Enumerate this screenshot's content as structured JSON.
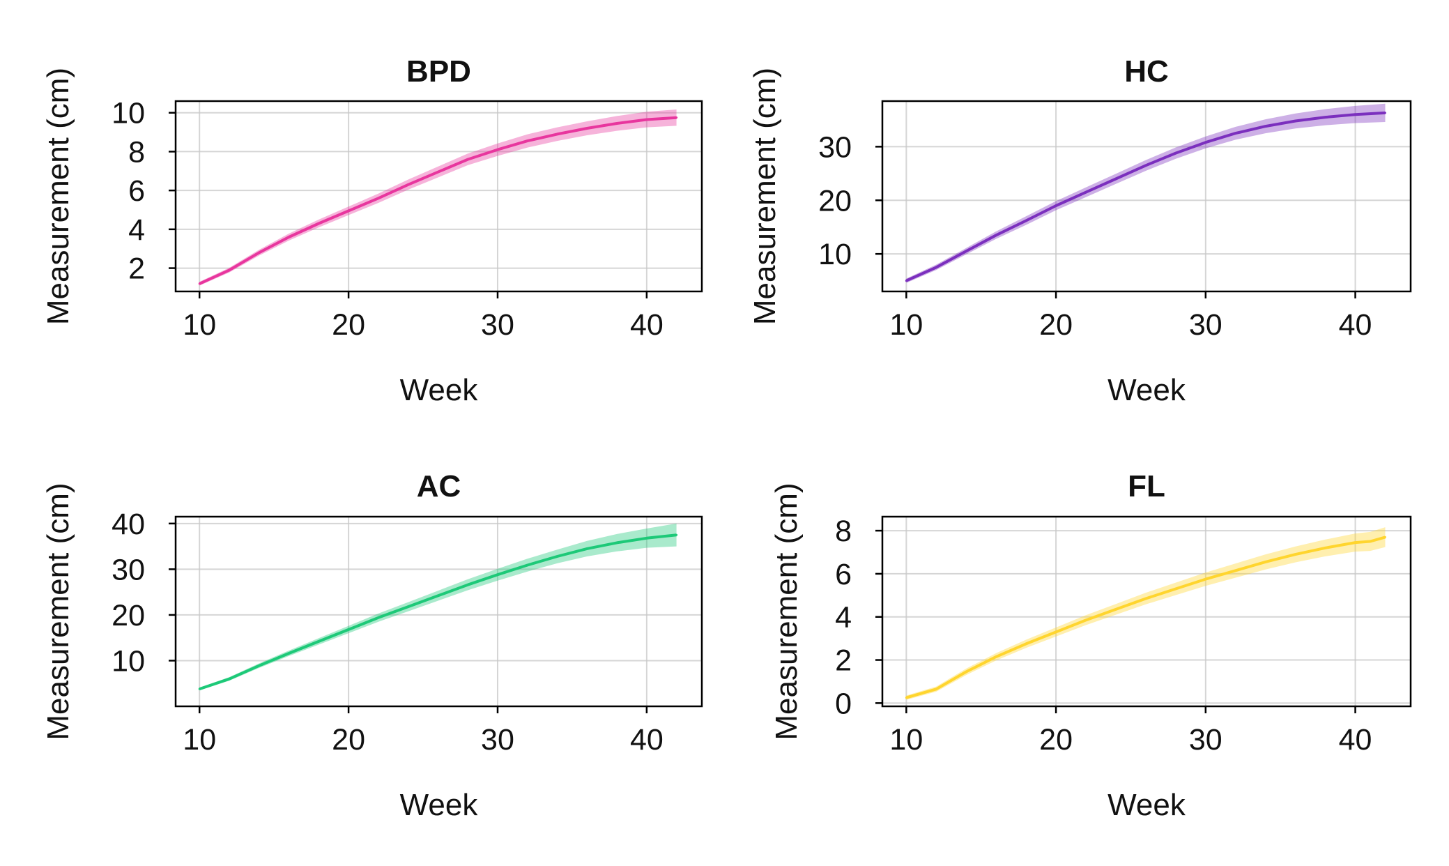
{
  "chart_data": [
    {
      "type": "line",
      "title": "BPD",
      "xlabel": "Week",
      "ylabel": "Measurement (cm)",
      "color": "#e8369e",
      "x": [
        10,
        12,
        14,
        16,
        18,
        20,
        22,
        24,
        26,
        28,
        30,
        32,
        34,
        36,
        38,
        40,
        42
      ],
      "y": [
        1.2,
        1.9,
        2.8,
        3.6,
        4.3,
        4.95,
        5.6,
        6.3,
        6.95,
        7.6,
        8.1,
        8.55,
        8.9,
        9.2,
        9.45,
        9.65,
        9.75
      ],
      "band": [
        0.1,
        0.12,
        0.15,
        0.18,
        0.2,
        0.22,
        0.24,
        0.26,
        0.28,
        0.3,
        0.32,
        0.34,
        0.35,
        0.36,
        0.38,
        0.4,
        0.42
      ],
      "xlim": [
        8.4,
        43.7
      ],
      "ylim": [
        0.8,
        10.6
      ],
      "xticks": [
        10,
        20,
        30,
        40
      ],
      "yticks": [
        2,
        4,
        6,
        8,
        10
      ],
      "grid": true
    },
    {
      "type": "line",
      "title": "HC",
      "xlabel": "Week",
      "ylabel": "Measurement (cm)",
      "color": "#7b2fbe",
      "x": [
        10,
        12,
        14,
        16,
        18,
        20,
        22,
        24,
        26,
        28,
        30,
        32,
        34,
        36,
        38,
        40,
        42
      ],
      "y": [
        5.0,
        7.5,
        10.5,
        13.5,
        16.2,
        19.0,
        21.5,
        24.0,
        26.5,
        28.8,
        30.8,
        32.5,
        33.8,
        34.8,
        35.5,
        36.0,
        36.3
      ],
      "band": [
        0.4,
        0.5,
        0.6,
        0.7,
        0.8,
        0.85,
        0.9,
        0.95,
        1.0,
        1.05,
        1.1,
        1.2,
        1.3,
        1.4,
        1.5,
        1.6,
        1.7
      ],
      "xlim": [
        8.4,
        43.7
      ],
      "ylim": [
        3.0,
        38.5
      ],
      "xticks": [
        10,
        20,
        30,
        40
      ],
      "yticks": [
        10,
        20,
        30
      ],
      "grid": true
    },
    {
      "type": "line",
      "title": "AC",
      "xlabel": "Week",
      "ylabel": "Measurement (cm)",
      "color": "#1dc978",
      "x": [
        10,
        12,
        14,
        16,
        18,
        20,
        22,
        24,
        26,
        28,
        30,
        32,
        34,
        36,
        38,
        40,
        42
      ],
      "y": [
        3.8,
        6.0,
        8.9,
        11.6,
        14.2,
        16.8,
        19.4,
        21.8,
        24.2,
        26.6,
        28.8,
        30.9,
        32.8,
        34.5,
        35.8,
        36.8,
        37.5
      ],
      "band": [
        0.3,
        0.4,
        0.5,
        0.6,
        0.7,
        0.8,
        0.9,
        1.0,
        1.1,
        1.2,
        1.3,
        1.4,
        1.5,
        1.7,
        1.9,
        2.1,
        2.5
      ],
      "xlim": [
        8.4,
        43.7
      ],
      "ylim": [
        0.0,
        41.5
      ],
      "xticks": [
        10,
        20,
        30,
        40
      ],
      "yticks": [
        10,
        20,
        30,
        40
      ],
      "grid": true
    },
    {
      "type": "line",
      "title": "FL",
      "xlabel": "Week",
      "ylabel": "Measurement (cm)",
      "color": "#ffd52e",
      "x": [
        10,
        12,
        14,
        16,
        18,
        20,
        22,
        24,
        26,
        28,
        30,
        32,
        34,
        36,
        38,
        40,
        41,
        42
      ],
      "y": [
        0.25,
        0.65,
        1.45,
        2.15,
        2.75,
        3.3,
        3.85,
        4.35,
        4.85,
        5.3,
        5.75,
        6.15,
        6.55,
        6.9,
        7.2,
        7.45,
        7.5,
        7.7
      ],
      "band": [
        0.1,
        0.12,
        0.15,
        0.17,
        0.19,
        0.21,
        0.23,
        0.25,
        0.27,
        0.29,
        0.31,
        0.33,
        0.35,
        0.37,
        0.39,
        0.42,
        0.44,
        0.46
      ],
      "xlim": [
        8.4,
        43.7
      ],
      "ylim": [
        -0.15,
        8.65
      ],
      "xticks": [
        10,
        20,
        30,
        40
      ],
      "yticks": [
        0,
        2,
        4,
        6,
        8
      ],
      "grid": true
    }
  ]
}
